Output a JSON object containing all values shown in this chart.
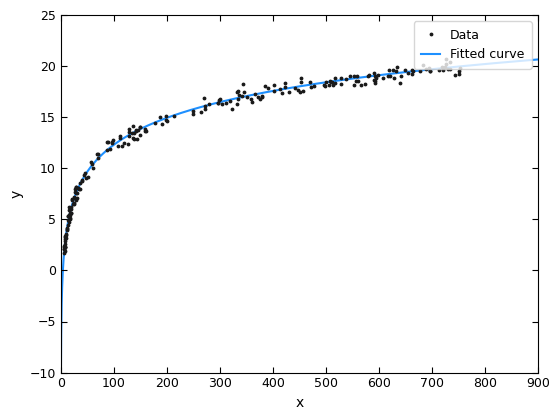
{
  "title": "",
  "xlabel": "x",
  "ylabel": "y",
  "xlim": [
    0,
    900
  ],
  "ylim": [
    -10,
    25
  ],
  "xticks": [
    0,
    100,
    200,
    300,
    400,
    500,
    600,
    700,
    800,
    900
  ],
  "yticks": [
    -10,
    -5,
    0,
    5,
    10,
    15,
    20,
    25
  ],
  "fit_a": 3.8,
  "fit_b": -5.2,
  "data_seed": 42,
  "data_color": "#1a1a1a",
  "fit_color": "#1E90FF",
  "marker_size": 3.5,
  "line_width": 1.5,
  "legend_labels": [
    "Data",
    "Fitted curve"
  ],
  "background_color": "#ffffff",
  "figsize": [
    5.6,
    4.2
  ],
  "dpi": 100
}
